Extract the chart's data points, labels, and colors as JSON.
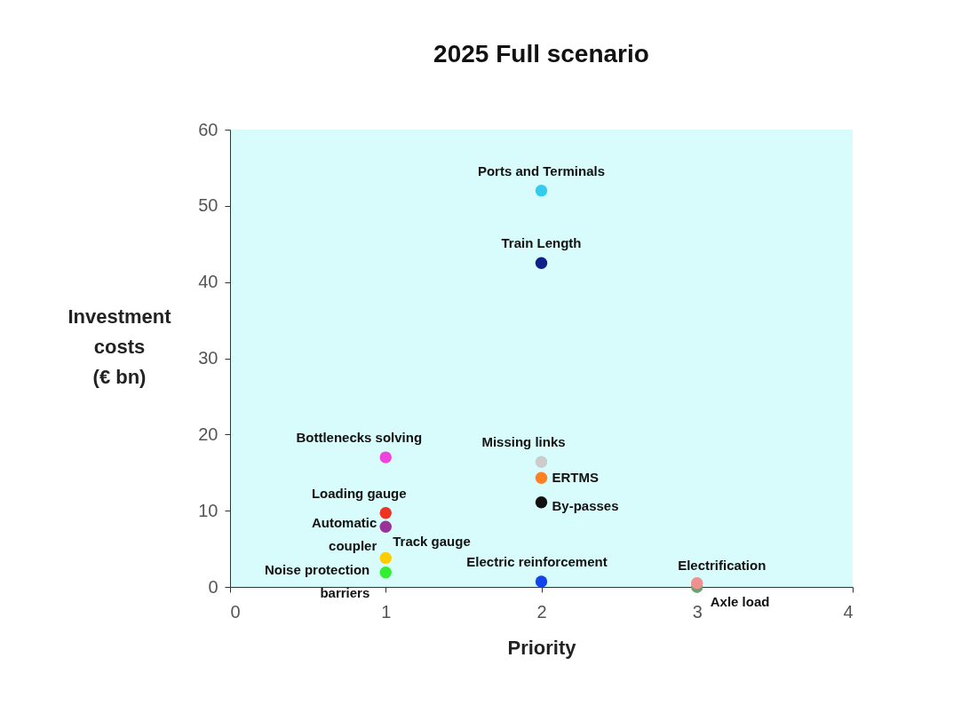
{
  "chart_data": {
    "type": "scatter",
    "title": "2025 Full scenario",
    "xlabel": "Priority",
    "ylabel": "Investment\ncosts\n(€ bn)",
    "xlim": [
      0,
      4
    ],
    "xticks": [
      0,
      1,
      2,
      3,
      4
    ],
    "ylim": [
      0,
      60
    ],
    "yticks": [
      0,
      10,
      20,
      30,
      40,
      50,
      60
    ],
    "grid": false,
    "legend": false,
    "marker": "circle",
    "series": [
      {
        "name": "Axle load",
        "color": "#70a070",
        "x": [
          3
        ],
        "values": [
          0
        ]
      },
      {
        "name": "Ports and Terminals",
        "color": "#33ccee",
        "x": [
          2
        ],
        "values": [
          52
        ]
      },
      {
        "name": "Train Length",
        "color": "#10208a",
        "x": [
          2
        ],
        "values": [
          42.5
        ]
      },
      {
        "name": "Bottlenecks solving",
        "color": "#ee44dd",
        "x": [
          1
        ],
        "values": [
          17
        ]
      },
      {
        "name": "Missing links",
        "color": "#cccccc",
        "x": [
          2
        ],
        "values": [
          16.4
        ]
      },
      {
        "name": "ERTMS",
        "color": "#ff8020",
        "x": [
          2
        ],
        "values": [
          14.3
        ]
      },
      {
        "name": "By-passes",
        "color": "#111111",
        "x": [
          2
        ],
        "values": [
          11.1
        ]
      },
      {
        "name": "Loading gauge",
        "color": "#ee3322",
        "x": [
          1
        ],
        "values": [
          9.7
        ]
      },
      {
        "name": "Automatic\ncoupler",
        "color": "#993399",
        "x": [
          1
        ],
        "values": [
          7.9
        ]
      },
      {
        "name": "Track gauge",
        "color": "#ffcc00",
        "x": [
          1
        ],
        "values": [
          3.8
        ]
      },
      {
        "name": "Noise protection\nbarriers",
        "color": "#33ee33",
        "x": [
          1
        ],
        "values": [
          1.9
        ]
      },
      {
        "name": "Electric reinforcement",
        "color": "#1144ee",
        "x": [
          2
        ],
        "values": [
          0.7
        ]
      },
      {
        "name": "Electrification",
        "color": "#f09090",
        "x": [
          3
        ],
        "values": [
          0.5
        ]
      }
    ]
  }
}
